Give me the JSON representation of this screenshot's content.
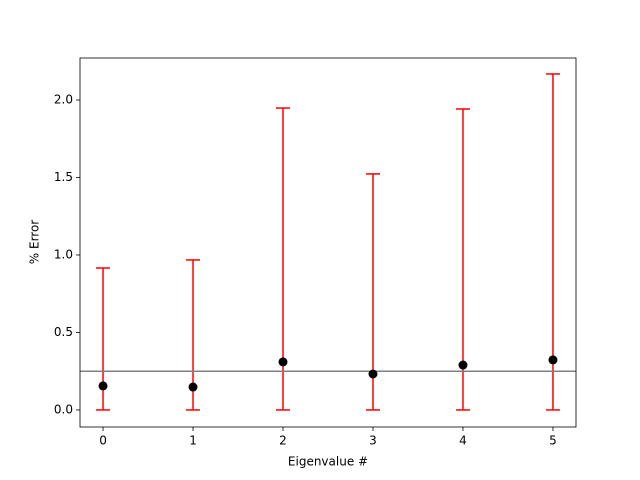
{
  "chart_data": {
    "type": "errorbar",
    "xlabel": "Eigenvalue #",
    "ylabel": "% Error",
    "x": [
      0,
      1,
      2,
      3,
      4,
      5
    ],
    "values": [
      0.155,
      0.148,
      0.31,
      0.232,
      0.29,
      0.323
    ],
    "lower": [
      0,
      0,
      0,
      0,
      0,
      0
    ],
    "upper": [
      0.916,
      0.968,
      1.948,
      1.523,
      1.942,
      2.168
    ],
    "marker_color": "#000000",
    "error_color": "#ff0000",
    "hline": 0.25,
    "hline_color": "#808080",
    "xlim": [
      -0.256,
      5.256
    ],
    "ylim": [
      -0.11,
      2.271
    ],
    "xticks": [
      0,
      1,
      2,
      3,
      4,
      5
    ],
    "yticks": [
      {
        "value": 0,
        "label": "0.0"
      },
      {
        "value": 0.5,
        "label": "0.5"
      },
      {
        "value": 1,
        "label": "1.0"
      },
      {
        "value": 1.5,
        "label": "1.5"
      },
      {
        "value": 2,
        "label": "2.0"
      }
    ],
    "grid": false
  }
}
